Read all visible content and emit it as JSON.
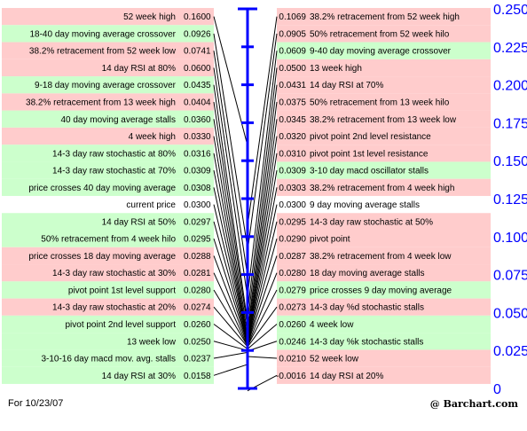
{
  "chart_data": {
    "type": "table",
    "ylim": [
      -0.0016,
      0.25
    ],
    "ticks": [
      "0.250",
      "0.225",
      "0.200",
      "0.175",
      "0.150",
      "0.125",
      "0.100",
      "0.075",
      "0.050",
      "0.025",
      "0"
    ],
    "tick_values": [
      0.25,
      0.225,
      0.2,
      0.175,
      0.15,
      0.125,
      0.1,
      0.075,
      0.05,
      0.025,
      0
    ],
    "current_value": "0.0300",
    "left_rows": [
      {
        "label": "52 week high",
        "value": "0.1600",
        "color": "red"
      },
      {
        "label": "18-40 day moving average crossover",
        "value": "0.0926",
        "color": "green"
      },
      {
        "label": "38.2% retracement from 52 week low",
        "value": "0.0741",
        "color": "red"
      },
      {
        "label": "14 day RSI at 80%",
        "value": "0.0600",
        "color": "red"
      },
      {
        "label": "9-18 day moving average crossover",
        "value": "0.0435",
        "color": "green"
      },
      {
        "label": "38.2% retracement from 13 week high",
        "value": "0.0404",
        "color": "red"
      },
      {
        "label": "40 day moving average stalls",
        "value": "0.0360",
        "color": "green"
      },
      {
        "label": "4 week high",
        "value": "0.0330",
        "color": "red"
      },
      {
        "label": "14-3 day raw stochastic at 80%",
        "value": "0.0316",
        "color": "green"
      },
      {
        "label": "14-3 day raw stochastic at 70%",
        "value": "0.0309",
        "color": "green"
      },
      {
        "label": "price crosses 40 day moving average",
        "value": "0.0308",
        "color": "green"
      },
      {
        "label": "current price",
        "value": "0.0300",
        "color": "white"
      },
      {
        "label": "14 day RSI at 50%",
        "value": "0.0297",
        "color": "green"
      },
      {
        "label": "50% retracement from 4 week hilo",
        "value": "0.0295",
        "color": "green"
      },
      {
        "label": "price crosses 18 day moving average",
        "value": "0.0288",
        "color": "red"
      },
      {
        "label": "14-3 day raw stochastic at 30%",
        "value": "0.0281",
        "color": "red"
      },
      {
        "label": "pivot point 1st level support",
        "value": "0.0280",
        "color": "green"
      },
      {
        "label": "14-3 day raw stochastic at 20%",
        "value": "0.0274",
        "color": "red"
      },
      {
        "label": "pivot point 2nd level support",
        "value": "0.0260",
        "color": "green"
      },
      {
        "label": "13 week low",
        "value": "0.0250",
        "color": "green"
      },
      {
        "label": "3-10-16 day macd mov. avg. stalls",
        "value": "0.0237",
        "color": "green"
      },
      {
        "label": "14 day RSI at 30%",
        "value": "0.0158",
        "color": "green"
      }
    ],
    "right_rows": [
      {
        "label": "38.2% retracement from 52 week high",
        "value": "0.1069",
        "color": "red"
      },
      {
        "label": "50% retracement from 52 week hilo",
        "value": "0.0905",
        "color": "red"
      },
      {
        "label": "9-40 day moving average crossover",
        "value": "0.0609",
        "color": "green"
      },
      {
        "label": "13 week high",
        "value": "0.0500",
        "color": "red"
      },
      {
        "label": "14 day RSI at 70%",
        "value": "0.0431",
        "color": "red"
      },
      {
        "label": "50% retracement from 13 week hilo",
        "value": "0.0375",
        "color": "red"
      },
      {
        "label": "38.2% retracement from 13 week low",
        "value": "0.0345",
        "color": "red"
      },
      {
        "label": "pivot point 2nd level resistance",
        "value": "0.0320",
        "color": "red"
      },
      {
        "label": "pivot point 1st level resistance",
        "value": "0.0310",
        "color": "red"
      },
      {
        "label": "3-10 day macd oscillator stalls",
        "value": "0.0309",
        "color": "green"
      },
      {
        "label": "38.2% retracement from 4 week high",
        "value": "0.0303",
        "color": "red"
      },
      {
        "label": "9 day moving average stalls",
        "value": "0.0300",
        "color": "white"
      },
      {
        "label": "14-3 day raw stochastic at 50%",
        "value": "0.0295",
        "color": "red"
      },
      {
        "label": "pivot point",
        "value": "0.0290",
        "color": "red"
      },
      {
        "label": "38.2% retracement from 4 week low",
        "value": "0.0287",
        "color": "red"
      },
      {
        "label": "18 day moving average stalls",
        "value": "0.0280",
        "color": "red"
      },
      {
        "label": "price crosses 9 day moving average",
        "value": "0.0279",
        "color": "green"
      },
      {
        "label": "14-3 day %d stochastic stalls",
        "value": "0.0273",
        "color": "red"
      },
      {
        "label": "4 week low",
        "value": "0.0260",
        "color": "green"
      },
      {
        "label": "14-3 day %k stochastic stalls",
        "value": "0.0246",
        "color": "green"
      },
      {
        "label": "52 week low",
        "value": "0.0210",
        "color": "red"
      },
      {
        "label": "14 day RSI at 20%",
        "value": "-0.0016",
        "color": "red"
      }
    ]
  },
  "colors": {
    "red": "#ffcccc",
    "green": "#ccffcc",
    "white": "#ffffff",
    "axis": "#0000ff",
    "line": "#000000"
  },
  "footer": {
    "date_text": "For 10/23/07",
    "brand": "@ Barchart.com"
  }
}
